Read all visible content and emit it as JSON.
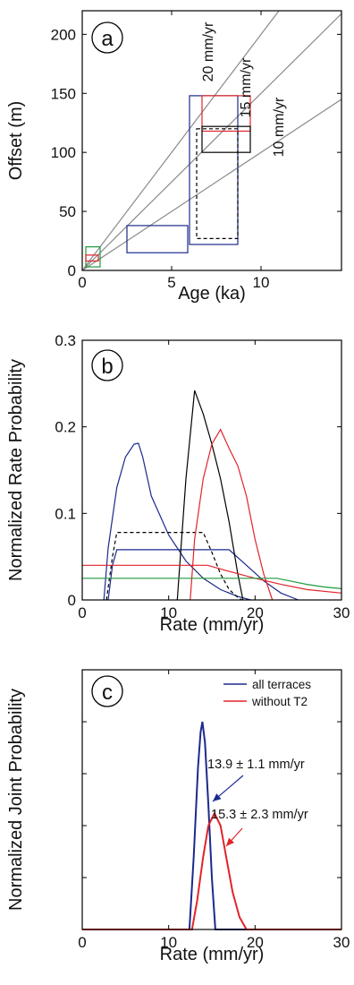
{
  "colors": {
    "blue": "#1b2a8c",
    "red": "#e0242b",
    "black": "#000000",
    "green": "#1f9a3c",
    "gray": "#8a8a8a"
  },
  "chart_data": [
    {
      "panel": "a",
      "type": "scatter",
      "xlabel": "Age (ka)",
      "ylabel": "Offset (m)",
      "xlim": [
        0,
        14.5
      ],
      "ylim": [
        0,
        220
      ],
      "xticks": [
        "0",
        "5",
        "10"
      ],
      "yticks": [
        "0",
        "50",
        "100",
        "150",
        "200"
      ],
      "rate_lines": [
        {
          "label": "20 mm/yr",
          "slope": 20
        },
        {
          "label": "15 mm/yr",
          "slope": 15
        },
        {
          "label": "10 mm/yr",
          "slope": 10
        }
      ],
      "boxes": [
        {
          "color": "green",
          "style": "solid",
          "x": [
            0.2,
            1.0
          ],
          "y": [
            3,
            20
          ]
        },
        {
          "color": "red",
          "style": "solid",
          "x": [
            0.2,
            0.9
          ],
          "y": [
            8,
            13
          ]
        },
        {
          "color": "blue",
          "style": "solid",
          "x": [
            2.5,
            5.9
          ],
          "y": [
            15,
            38
          ]
        },
        {
          "color": "blue",
          "style": "solid",
          "x": [
            6.0,
            8.7
          ],
          "y": [
            22,
            148
          ]
        },
        {
          "color": "red",
          "style": "solid",
          "x": [
            6.7,
            9.4
          ],
          "y": [
            118,
            148
          ]
        },
        {
          "color": "black",
          "style": "solid",
          "x": [
            6.7,
            9.4
          ],
          "y": [
            100,
            122
          ]
        },
        {
          "color": "black",
          "style": "dashed",
          "x": [
            6.4,
            8.7
          ],
          "y": [
            27,
            120
          ]
        }
      ]
    },
    {
      "panel": "b",
      "type": "line",
      "xlabel": "Rate (mm/yr)",
      "ylabel": "Normalized Rate Probability",
      "xlim": [
        0,
        30
      ],
      "ylim": [
        0,
        0.3
      ],
      "xticks": [
        "0",
        "10",
        "20",
        "30"
      ],
      "yticks": [
        "0",
        "0.1",
        "0.2",
        "0.3"
      ],
      "series": [
        {
          "color": "blue",
          "style": "solid",
          "x": [
            2.5,
            3,
            4,
            5,
            6,
            6.5,
            7,
            8,
            10,
            12,
            14,
            16,
            18,
            19.5
          ],
          "y": [
            0,
            0.06,
            0.13,
            0.165,
            0.18,
            0.181,
            0.165,
            0.12,
            0.075,
            0.045,
            0.025,
            0.012,
            0.004,
            0
          ]
        },
        {
          "color": "blue",
          "style": "solid",
          "x": [
            3,
            3.5,
            4,
            17,
            19,
            21,
            23,
            25
          ],
          "y": [
            0,
            0.04,
            0.058,
            0.058,
            0.04,
            0.022,
            0.008,
            0
          ]
        },
        {
          "color": "black",
          "style": "solid",
          "x": [
            11,
            12,
            13,
            14,
            15,
            16,
            17,
            18,
            18.6
          ],
          "y": [
            0,
            0.14,
            0.242,
            0.215,
            0.18,
            0.14,
            0.09,
            0.03,
            0
          ]
        },
        {
          "color": "black",
          "style": "dashed",
          "x": [
            2.8,
            3.5,
            4,
            14,
            15,
            16,
            17,
            18,
            18.5
          ],
          "y": [
            0,
            0.05,
            0.078,
            0.078,
            0.055,
            0.03,
            0.012,
            0.003,
            0
          ]
        },
        {
          "color": "red",
          "style": "solid",
          "x": [
            0,
            14.5,
            17,
            20,
            23,
            26,
            30
          ],
          "y": [
            0.04,
            0.04,
            0.033,
            0.025,
            0.018,
            0.012,
            0.008
          ]
        },
        {
          "color": "red",
          "style": "solid",
          "x": [
            12.5,
            13,
            14,
            15,
            16,
            17,
            18,
            19,
            20,
            21,
            22
          ],
          "y": [
            0,
            0.07,
            0.14,
            0.18,
            0.197,
            0.175,
            0.155,
            0.12,
            0.07,
            0.03,
            0
          ]
        },
        {
          "color": "green",
          "style": "solid",
          "x": [
            0,
            22.5,
            24,
            26,
            28,
            30
          ],
          "y": [
            0.025,
            0.025,
            0.022,
            0.018,
            0.015,
            0.013
          ]
        }
      ]
    },
    {
      "panel": "c",
      "type": "line",
      "xlabel": "Rate (mm/yr)",
      "ylabel": "Normalized Joint Probability",
      "xlim": [
        0,
        30
      ],
      "xticks": [
        "0",
        "10",
        "20",
        "30"
      ],
      "legend": {
        "placement": "top-right",
        "items": [
          {
            "label": "all terraces",
            "color": "blue"
          },
          {
            "label": "without T2",
            "color": "red"
          }
        ]
      },
      "annotations": [
        {
          "text": "13.9 ± 1.1 mm/yr",
          "color": "blue"
        },
        {
          "text": "15.3 ± 2.3 mm/yr",
          "color": "red"
        }
      ],
      "series": [
        {
          "name": "all terraces",
          "color": "blue",
          "x": [
            0,
            12.4,
            12.9,
            13.4,
            13.7,
            13.9,
            14.2,
            14.6,
            15.0,
            15.4,
            30
          ],
          "y": [
            0,
            0,
            0.35,
            0.78,
            0.95,
            1.0,
            0.9,
            0.6,
            0.25,
            0,
            0
          ]
        },
        {
          "name": "without T2",
          "color": "red",
          "x": [
            0,
            12.7,
            13.3,
            14.0,
            14.6,
            15.3,
            16.0,
            16.7,
            17.4,
            18.2,
            19.0,
            30
          ],
          "y": [
            0,
            0,
            0.14,
            0.35,
            0.5,
            0.56,
            0.5,
            0.34,
            0.18,
            0.06,
            0,
            0
          ]
        }
      ]
    }
  ],
  "panel_labels": {
    "a": "a",
    "b": "b",
    "c": "c"
  }
}
